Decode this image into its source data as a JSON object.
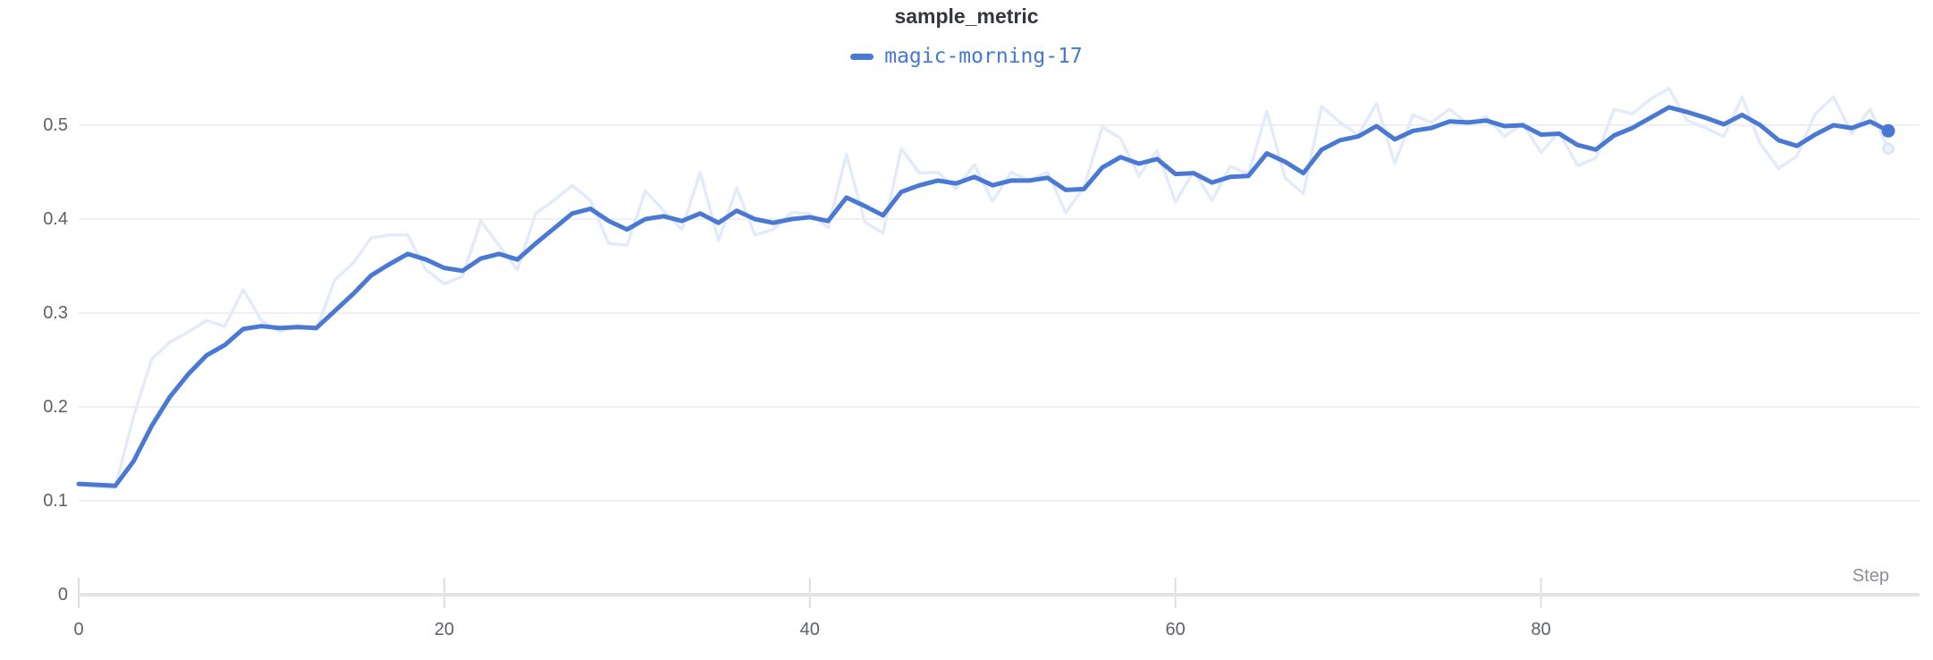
{
  "chart_data": {
    "type": "line",
    "title": "sample_metric",
    "xlabel": "Step",
    "ylabel": "",
    "legend": {
      "position": "top-center",
      "entries": [
        "magic-morning-17"
      ]
    },
    "grid": true,
    "xlim": [
      0,
      100.7
    ],
    "ylim": [
      0,
      0.552
    ],
    "x_ticks": [
      {
        "value": 0,
        "label": "0"
      },
      {
        "value": 20,
        "label": "20"
      },
      {
        "value": 40,
        "label": "40"
      },
      {
        "value": 60,
        "label": "60"
      },
      {
        "value": 80,
        "label": "80"
      }
    ],
    "y_ticks": [
      {
        "value": 0,
        "label": "0"
      },
      {
        "value": 0.1,
        "label": "0.1"
      },
      {
        "value": 0.2,
        "label": "0.2"
      },
      {
        "value": 0.3,
        "label": "0.3"
      },
      {
        "value": 0.4,
        "label": "0.4"
      },
      {
        "value": 0.5,
        "label": "0.5"
      }
    ],
    "x": "steps 0-99, one point per step",
    "series": [
      {
        "name": "magic-morning-17 (original, unsmoothed)",
        "role": "raw",
        "color": "#e3ebfa",
        "end_marker": "hollow-dot",
        "values": [
          0.118,
          0.115,
          0.114,
          0.19,
          0.251,
          0.269,
          0.28,
          0.292,
          0.286,
          0.325,
          0.292,
          0.28,
          0.287,
          0.282,
          0.335,
          0.353,
          0.38,
          0.383,
          0.383,
          0.346,
          0.331,
          0.339,
          0.398,
          0.372,
          0.346,
          0.406,
          0.42,
          0.436,
          0.42,
          0.374,
          0.372,
          0.43,
          0.409,
          0.389,
          0.45,
          0.377,
          0.433,
          0.383,
          0.389,
          0.407,
          0.406,
          0.391,
          0.469,
          0.397,
          0.385,
          0.475,
          0.449,
          0.45,
          0.432,
          0.458,
          0.419,
          0.45,
          0.441,
          0.45,
          0.407,
          0.434,
          0.498,
          0.486,
          0.446,
          0.473,
          0.418,
          0.451,
          0.42,
          0.456,
          0.448,
          0.515,
          0.444,
          0.427,
          0.52,
          0.503,
          0.49,
          0.523,
          0.459,
          0.511,
          0.503,
          0.517,
          0.501,
          0.509,
          0.488,
          0.502,
          0.471,
          0.493,
          0.457,
          0.465,
          0.517,
          0.512,
          0.528,
          0.539,
          0.505,
          0.497,
          0.488,
          0.53,
          0.48,
          0.454,
          0.467,
          0.512,
          0.53,
          0.491,
          0.517,
          0.475
        ]
      },
      {
        "name": "magic-morning-17",
        "role": "smoothed",
        "color": "#4a79d4",
        "end_marker": "solid-dot",
        "values": [
          0.118,
          0.117,
          0.116,
          0.142,
          0.18,
          0.211,
          0.235,
          0.255,
          0.266,
          0.283,
          0.286,
          0.284,
          0.285,
          0.284,
          0.302,
          0.32,
          0.34,
          0.352,
          0.363,
          0.357,
          0.348,
          0.345,
          0.358,
          0.363,
          0.357,
          0.374,
          0.39,
          0.406,
          0.411,
          0.398,
          0.389,
          0.4,
          0.403,
          0.398,
          0.406,
          0.396,
          0.409,
          0.4,
          0.396,
          0.4,
          0.402,
          0.398,
          0.423,
          0.414,
          0.404,
          0.429,
          0.436,
          0.441,
          0.438,
          0.445,
          0.436,
          0.441,
          0.441,
          0.444,
          0.431,
          0.432,
          0.455,
          0.466,
          0.459,
          0.464,
          0.448,
          0.449,
          0.439,
          0.445,
          0.446,
          0.47,
          0.461,
          0.449,
          0.474,
          0.484,
          0.488,
          0.499,
          0.485,
          0.494,
          0.497,
          0.504,
          0.503,
          0.505,
          0.499,
          0.5,
          0.49,
          0.491,
          0.479,
          0.474,
          0.489,
          0.497,
          0.508,
          0.519,
          0.514,
          0.508,
          0.501,
          0.511,
          0.5,
          0.484,
          0.478,
          0.49,
          0.5,
          0.497,
          0.504,
          0.494
        ]
      }
    ],
    "colors": {
      "accent": "#4a79d4",
      "legend_text": "#4478d6",
      "raw_line": "#e3ebfa",
      "raw_dot_fill": "#eef3fc",
      "raw_dot_stroke": "#d9e4f8",
      "grid": "#ececee",
      "axis": "#e4e4e7",
      "tick": "#dfdfe3",
      "tick_text": "#5d616a",
      "step_text": "#8b8f97",
      "title_text": "#33363c"
    }
  },
  "header": {
    "title": "sample_metric",
    "legend_label": "magic-morning-17"
  },
  "axes": {
    "x_label": "Step"
  }
}
